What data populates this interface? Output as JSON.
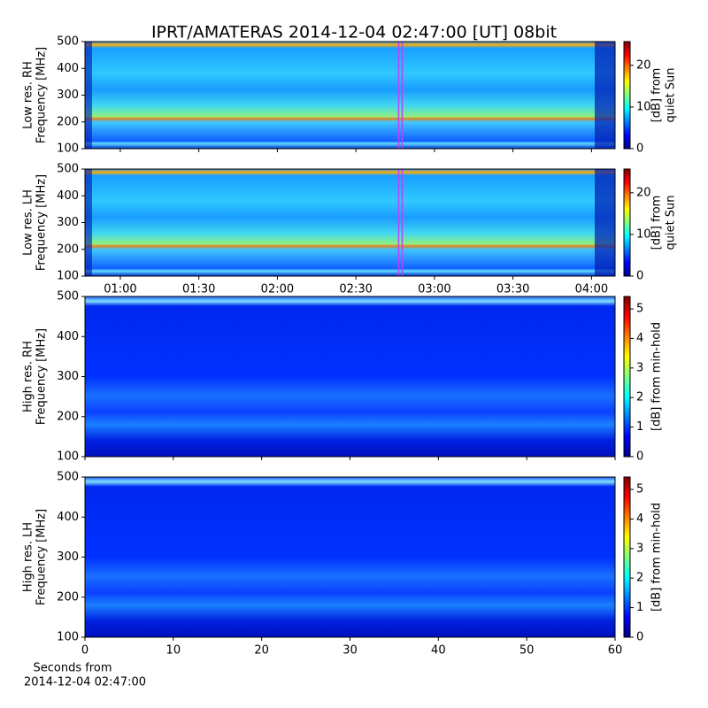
{
  "title": "IPRT/AMATERAS 2014-12-04 02:47:00 [UT]   08bit",
  "chart_data": [
    {
      "type": "spectrogram",
      "ylabel": [
        "Low res. RH",
        "Frequency [MHz]"
      ],
      "ylim": [
        100,
        500
      ],
      "yticks": [
        100,
        200,
        300,
        400,
        500
      ],
      "xlim": [
        46.5,
        249
      ],
      "xticks": [
        {
          "value": 60,
          "label": "01:00"
        },
        {
          "value": 90,
          "label": "01:30"
        },
        {
          "value": 120,
          "label": "02:00"
        },
        {
          "value": 150,
          "label": "02:30"
        },
        {
          "value": 180,
          "label": "03:00"
        },
        {
          "value": 210,
          "label": "03:30"
        },
        {
          "value": 240,
          "label": "04:00"
        }
      ],
      "xtick_labels_shown": false,
      "marker": 167,
      "marker_color": "#c040ff",
      "colorbar_label": [
        "[dB] from",
        "quiet Sun"
      ],
      "clim": [
        0,
        25.7
      ],
      "cticks": [
        0,
        10,
        20
      ],
      "colormap": "jet",
      "resolution": "low"
    },
    {
      "type": "spectrogram",
      "ylabel": [
        "Low res. LH",
        "Frequency [MHz]"
      ],
      "ylim": [
        100,
        500
      ],
      "yticks": [
        100,
        200,
        300,
        400,
        500
      ],
      "xlim": [
        46.5,
        249
      ],
      "xticks": [
        {
          "value": 60,
          "label": "01:00"
        },
        {
          "value": 90,
          "label": "01:30"
        },
        {
          "value": 120,
          "label": "02:00"
        },
        {
          "value": 150,
          "label": "02:30"
        },
        {
          "value": 180,
          "label": "03:00"
        },
        {
          "value": 210,
          "label": "03:30"
        },
        {
          "value": 240,
          "label": "04:00"
        }
      ],
      "xtick_labels_shown": true,
      "marker": 167,
      "marker_color": "#c040ff",
      "colorbar_label": [
        "[dB] from",
        "quiet Sun"
      ],
      "clim": [
        0,
        25.7
      ],
      "cticks": [
        0,
        10,
        20
      ],
      "colormap": "jet",
      "resolution": "low"
    },
    {
      "type": "spectrogram",
      "ylabel": [
        "High res. RH",
        "Frequency [MHz]"
      ],
      "ylim": [
        100,
        500
      ],
      "yticks": [
        100,
        200,
        300,
        400,
        500
      ],
      "xlim": [
        0,
        60
      ],
      "xticks": [
        0,
        10,
        20,
        30,
        40,
        50,
        60
      ],
      "xtick_labels_shown": false,
      "colorbar_label": [
        "[dB] from min-hold"
      ],
      "clim": [
        0,
        5.42
      ],
      "cticks": [
        0,
        1,
        2,
        3,
        4,
        5
      ],
      "colormap": "jet",
      "resolution": "high"
    },
    {
      "type": "spectrogram",
      "ylabel": [
        "High res. LH",
        "Frequency [MHz]"
      ],
      "ylim": [
        100,
        500
      ],
      "yticks": [
        100,
        200,
        300,
        400,
        500
      ],
      "xlim": [
        0,
        60
      ],
      "xticks": [
        0,
        10,
        20,
        30,
        40,
        50,
        60
      ],
      "xtick_labels_shown": true,
      "xlabel": [
        "Seconds from",
        "2014-12-04 02:47:00"
      ],
      "colorbar_label": [
        "[dB] from min-hold"
      ],
      "clim": [
        0,
        5.42
      ],
      "cticks": [
        0,
        1,
        2,
        3,
        4,
        5
      ],
      "colormap": "jet",
      "resolution": "high"
    }
  ]
}
